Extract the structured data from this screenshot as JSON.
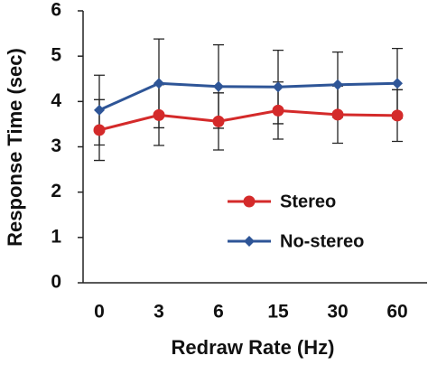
{
  "chart_data": {
    "type": "line",
    "x_label": "Redraw Rate (Hz)",
    "y_label": "Response Time (sec)",
    "categories": [
      "0",
      "3",
      "6",
      "15",
      "30",
      "60"
    ],
    "series": [
      {
        "name": "Stereo",
        "color": "#d42a2a",
        "marker": "circle",
        "values": [
          3.37,
          3.7,
          3.56,
          3.8,
          3.71,
          3.69
        ],
        "errors": [
          0.67,
          0.67,
          0.63,
          0.63,
          0.63,
          0.57
        ]
      },
      {
        "name": "No-stereo",
        "color": "#2e5597",
        "marker": "diamond",
        "values": [
          3.81,
          4.4,
          4.33,
          4.32,
          4.37,
          4.4
        ],
        "errors": [
          0.77,
          0.98,
          0.92,
          0.81,
          0.72,
          0.77
        ]
      }
    ],
    "ylim": [
      0,
      6
    ],
    "yticks": [
      0,
      1,
      2,
      3,
      4,
      5,
      6
    ],
    "grid": false
  }
}
